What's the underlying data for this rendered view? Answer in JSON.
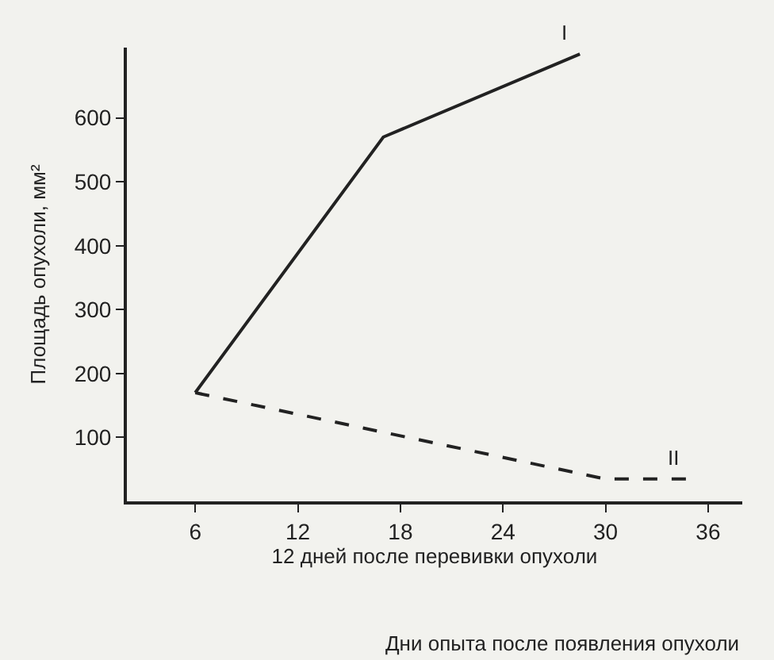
{
  "chart_data": {
    "type": "line",
    "ylabel": "Площадь опухоли, мм²",
    "xlabel": "12 дней после перевивки опухоли",
    "annotations": [
      "Дни опыта после появления опухоли"
    ],
    "xlim": [
      2,
      38
    ],
    "xticks": [
      6,
      12,
      18,
      24,
      30,
      36
    ],
    "ylim": [
      0,
      710
    ],
    "yticks": [
      100,
      200,
      300,
      400,
      500,
      600
    ],
    "grid": false,
    "legend": false,
    "series": [
      {
        "name": "I",
        "color": "#222222",
        "x": [
          6,
          17,
          28.5
        ],
        "values": [
          170,
          570,
          700
        ],
        "line_style": "solid"
      },
      {
        "name": "II",
        "color": "#222222",
        "x": [
          6,
          30,
          35
        ],
        "values": [
          170,
          35,
          35
        ],
        "line_style": "dashed"
      }
    ]
  }
}
